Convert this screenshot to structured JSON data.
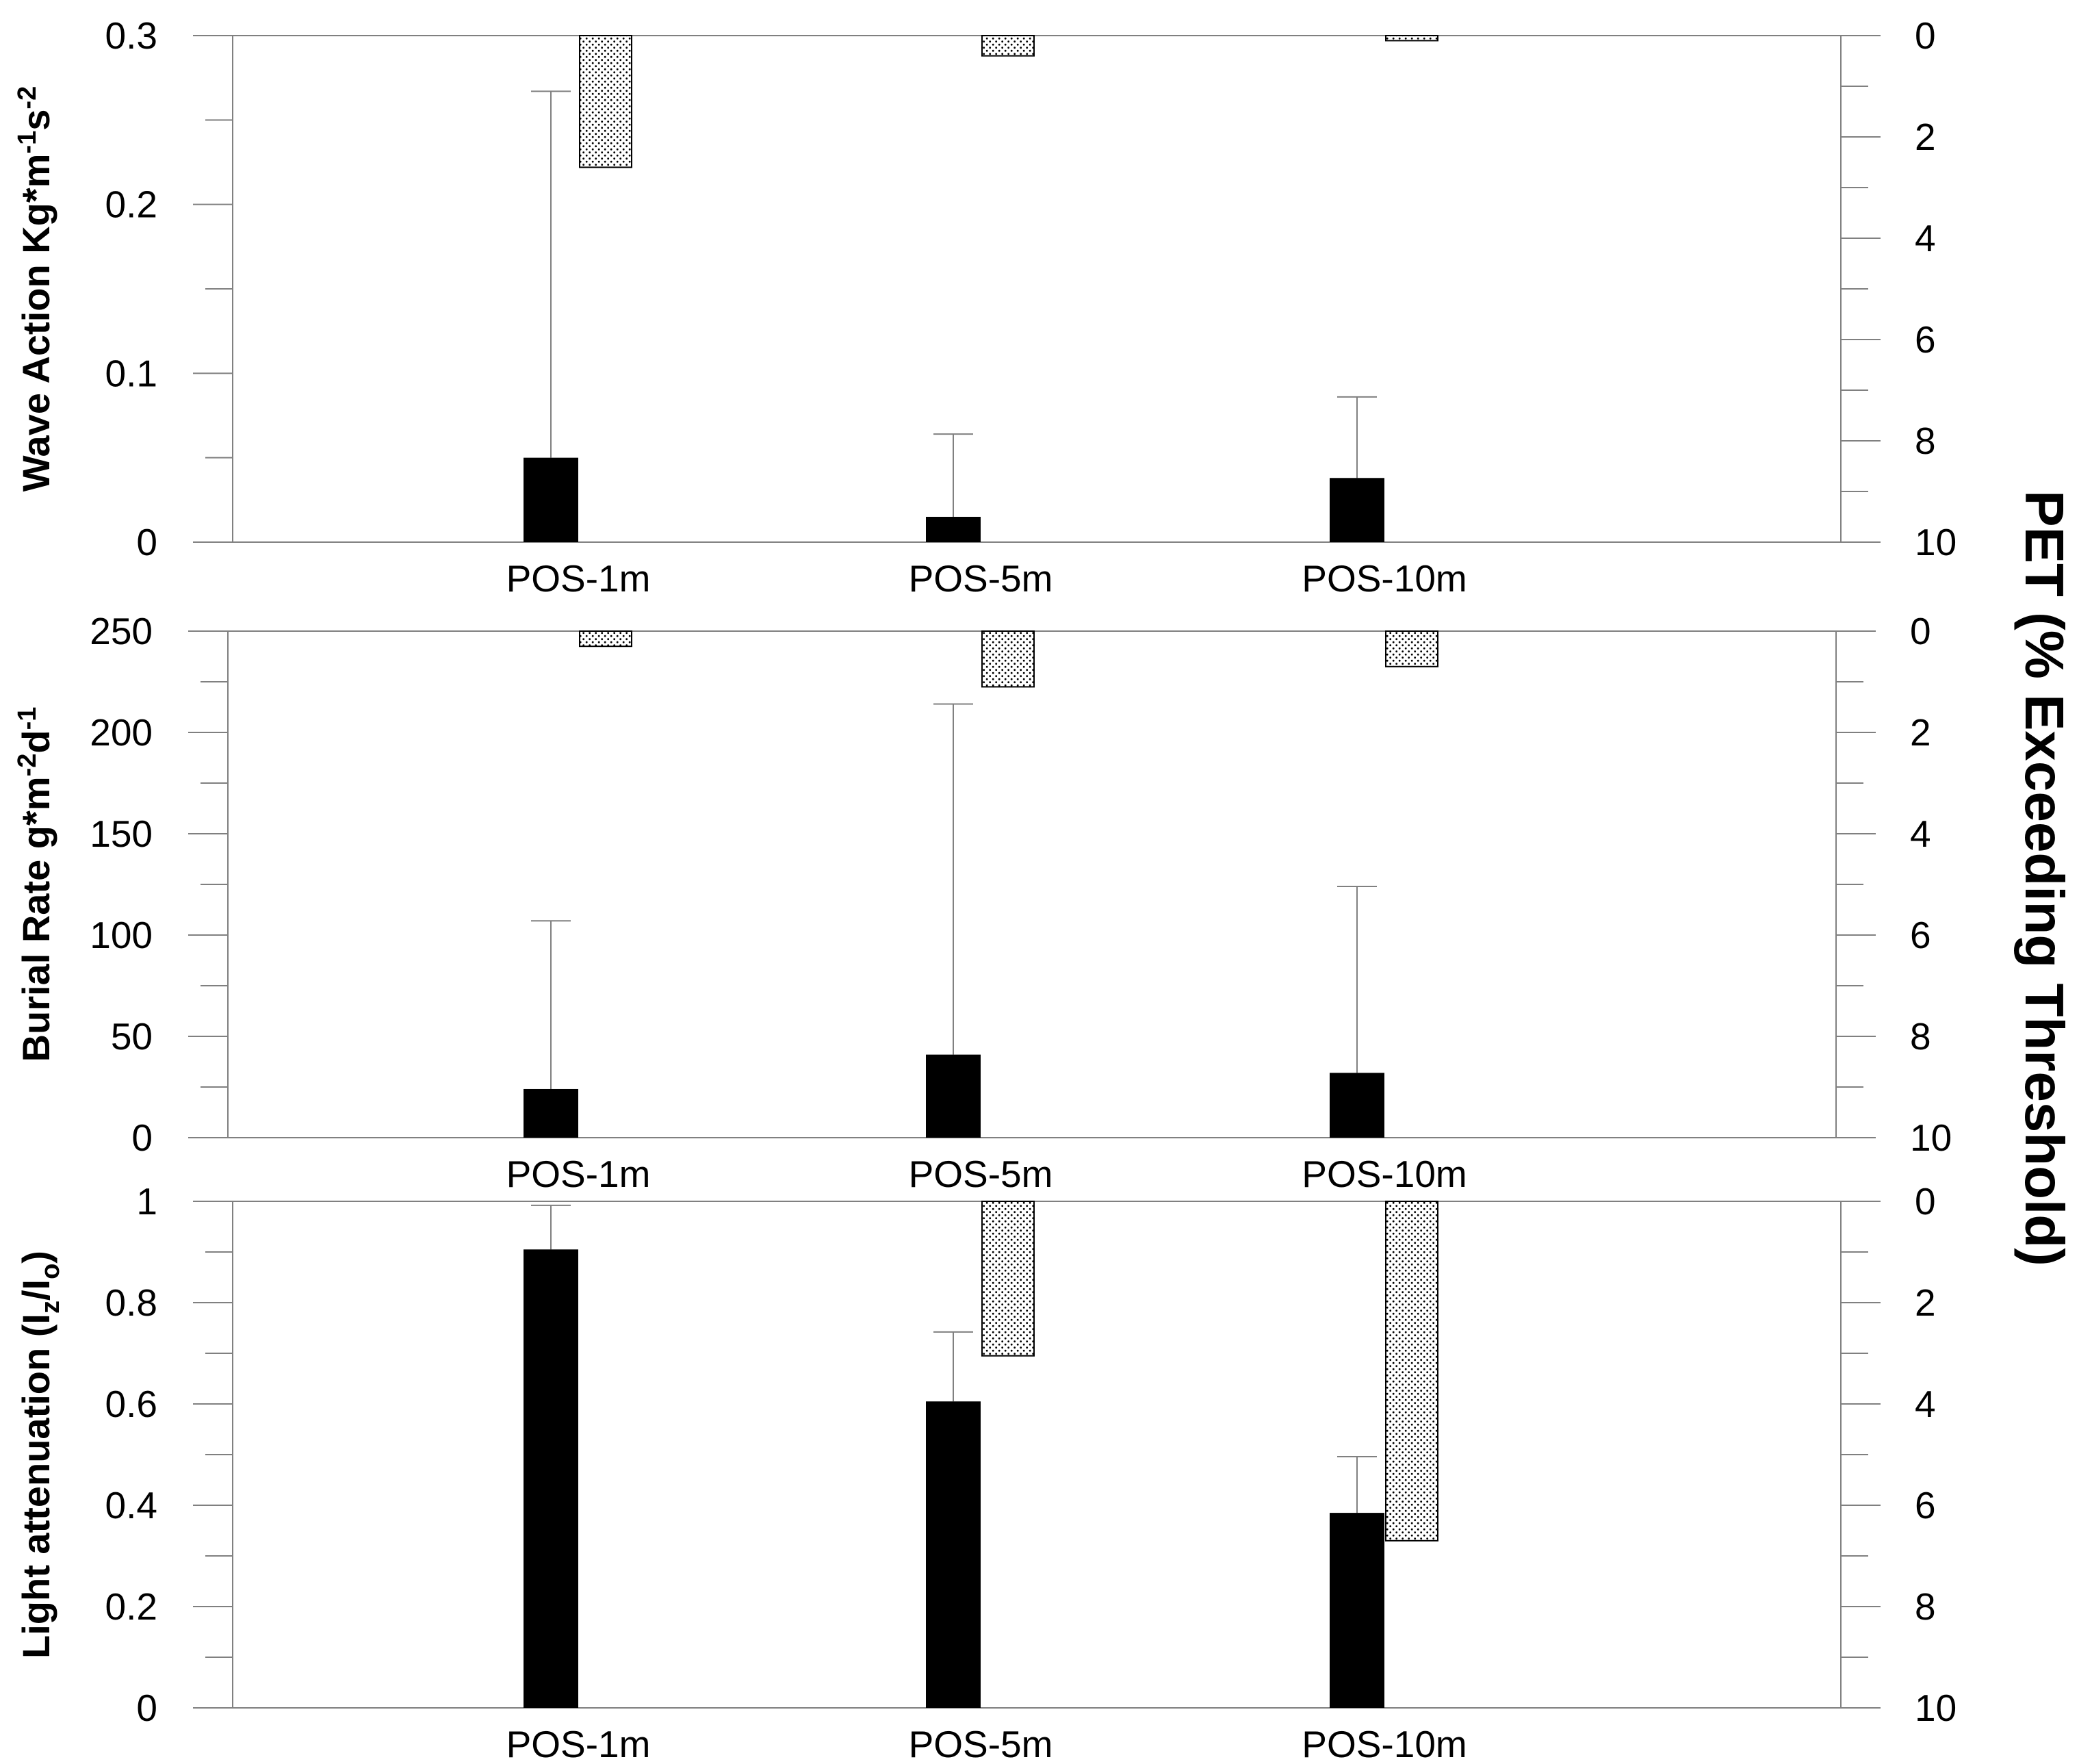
{
  "figure": {
    "right_axis_title": "PET (% Exceeding Threshold)"
  },
  "chart_data": [
    {
      "type": "bar",
      "panel": "top",
      "categories": [
        "POS-1m",
        "POS-5m",
        "POS-10m"
      ],
      "ylabel_parts": [
        {
          "text": "Wave Action Kg*m",
          "sup": false,
          "sub": false
        },
        {
          "text": "-1",
          "sup": true,
          "sub": false
        },
        {
          "text": "s",
          "sup": false,
          "sub": false
        },
        {
          "text": "-2",
          "sup": true,
          "sub": false
        }
      ],
      "ylim": [
        0,
        0.3
      ],
      "yticks": [
        0,
        0.1,
        0.2,
        0.3
      ],
      "ytick_labels": [
        "0",
        "0.1",
        "0.2",
        "0.3"
      ],
      "y2lim": [
        0,
        10
      ],
      "y2_inverted": true,
      "y2ticks": [
        0,
        2,
        4,
        6,
        8,
        10
      ],
      "y2tick_labels": [
        "0",
        "2",
        "4",
        "6",
        "8",
        "10"
      ],
      "series": [
        {
          "style": "solid black",
          "axis": "left",
          "values": [
            0.05,
            0.015,
            0.038
          ],
          "error_upper": [
            0.267,
            0.064,
            0.086
          ]
        },
        {
          "style": "stippled",
          "axis": "right",
          "values": [
            2.6,
            0.4,
            0.1
          ]
        }
      ],
      "grid": false
    },
    {
      "type": "bar",
      "panel": "middle",
      "categories": [
        "POS-1m",
        "POS-5m",
        "POS-10m"
      ],
      "ylabel_parts": [
        {
          "text": "Burial Rate g*m",
          "sup": false,
          "sub": false
        },
        {
          "text": "-2",
          "sup": true,
          "sub": false
        },
        {
          "text": "d",
          "sup": false,
          "sub": false
        },
        {
          "text": "-1",
          "sup": true,
          "sub": false
        }
      ],
      "ylim": [
        0,
        250
      ],
      "yticks": [
        0,
        50,
        100,
        150,
        200,
        250
      ],
      "ytick_labels": [
        "0",
        "50",
        "100",
        "150",
        "200",
        "250"
      ],
      "y2lim": [
        0,
        10
      ],
      "y2_inverted": true,
      "y2ticks": [
        0,
        2,
        4,
        6,
        8,
        10
      ],
      "y2tick_labels": [
        "0",
        "2",
        "4",
        "6",
        "8",
        "10"
      ],
      "series": [
        {
          "style": "solid black",
          "axis": "left",
          "values": [
            24,
            41,
            32
          ],
          "error_upper": [
            107,
            214,
            124
          ]
        },
        {
          "style": "stippled",
          "axis": "right",
          "values": [
            0.3,
            1.1,
            0.7
          ]
        }
      ],
      "grid": false
    },
    {
      "type": "bar",
      "panel": "bottom",
      "categories": [
        "POS-1m",
        "POS-5m",
        "POS-10m"
      ],
      "ylabel_parts": [
        {
          "text": "Light attenuation (I",
          "sup": false,
          "sub": false
        },
        {
          "text": "z",
          "sup": false,
          "sub": true
        },
        {
          "text": "/I",
          "sup": false,
          "sub": false
        },
        {
          "text": "o",
          "sup": false,
          "sub": true
        },
        {
          "text": ")",
          "sup": false,
          "sub": false
        }
      ],
      "ylim": [
        0,
        1
      ],
      "yticks": [
        0,
        0.2,
        0.4,
        0.6,
        0.8,
        1
      ],
      "ytick_labels": [
        "0",
        "0.2",
        "0.4",
        "0.6",
        "0.8",
        "1"
      ],
      "y2lim": [
        0,
        10
      ],
      "y2_inverted": true,
      "y2ticks": [
        0,
        2,
        4,
        6,
        8,
        10
      ],
      "y2tick_labels": [
        "0",
        "2",
        "4",
        "6",
        "8",
        "10"
      ],
      "series": [
        {
          "style": "solid black",
          "axis": "left",
          "values": [
            0.905,
            0.605,
            0.385
          ],
          "error_upper": [
            0.992,
            0.742,
            0.496
          ]
        },
        {
          "style": "stippled",
          "axis": "right",
          "values": [
            0,
            3.05,
            6.7
          ]
        }
      ],
      "grid": false
    }
  ]
}
